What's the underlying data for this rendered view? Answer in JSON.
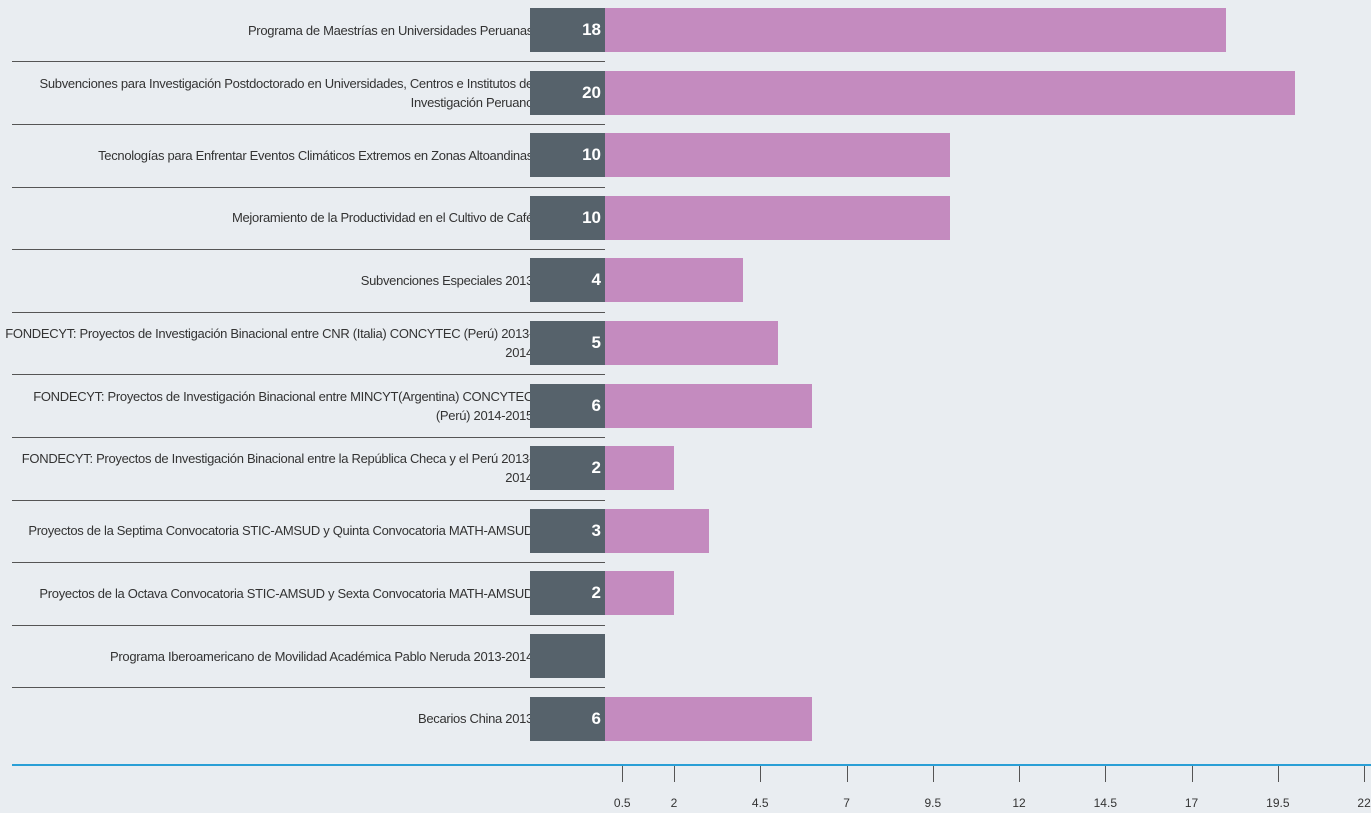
{
  "chart_data": {
    "type": "bar",
    "orientation": "horizontal",
    "categories": [
      "Programa de Maestrías en Universidades Peruanas",
      "Subvenciones para Investigación Postdoctorado en Universidades, Centros e Institutos de Investigación Peruano",
      "Tecnologías para Enfrentar Eventos Climáticos Extremos en Zonas Altoandinas",
      "Mejoramiento de la Productividad en el Cultivo de Café",
      "Subvenciones Especiales 2013",
      "FONDECYT: Proyectos de Investigación Binacional entre CNR (Italia) CONCYTEC (Perú) 2013-2014",
      "FONDECYT: Proyectos de Investigación Binacional entre MINCYT(Argentina) CONCYTEC (Perú) 2014-2015",
      "FONDECYT: Proyectos de Investigación Binacional entre la República Checa y el Perú 2013-2014",
      "Proyectos de la Septima Convocatoria STIC-AMSUD y Quinta Convocatoria MATH-AMSUD",
      "Proyectos de la Octava Convocatoria STIC-AMSUD y Sexta Convocatoria MATH-AMSUD",
      "Programa Iberoamericano de  Movilidad Académica Pablo Neruda 2013-2014",
      "Becarios China 2013"
    ],
    "values": [
      18,
      20,
      10,
      10,
      4,
      5,
      6,
      2,
      3,
      2,
      null,
      6
    ],
    "color": "#c48bbf",
    "xlim": [
      0,
      22.2
    ],
    "xticks": [
      0.5,
      2,
      4.5,
      7,
      9.5,
      12,
      14.5,
      17,
      19.5,
      22
    ]
  }
}
